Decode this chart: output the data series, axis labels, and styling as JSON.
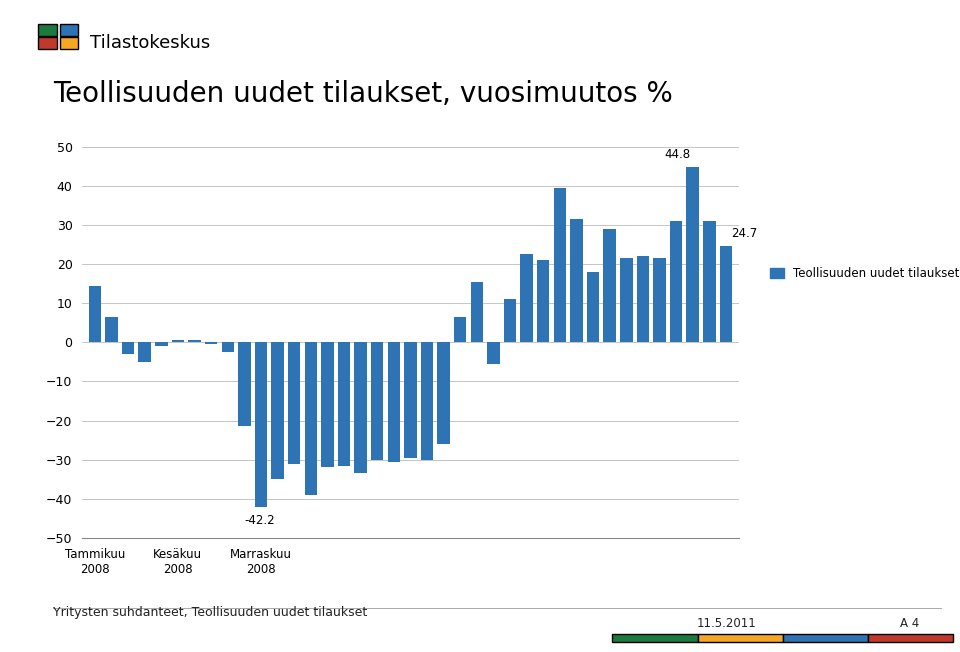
{
  "title": "Teollisuuden uudet tilaukset, vuosimuutos %",
  "bar_color": "#2E74B5",
  "legend_label": "Teollisuuden uudet tilaukset",
  "footer_text": "Yritysten suhdanteet, Teollisuuden uudet tilaukset",
  "date_text": "11.5.2011",
  "page_text": "A 4",
  "ylim": [
    -50,
    50
  ],
  "yticks": [
    -50,
    -40,
    -30,
    -20,
    -10,
    0,
    10,
    20,
    30,
    40,
    50
  ],
  "xtick_positions": [
    0,
    5,
    10
  ],
  "xtick_labels": [
    "Tammikuu\n2008",
    "Kesäkuu\n2008",
    "Marraskuu\n2008"
  ],
  "annotate_min_idx": 10,
  "annotate_min_val": -42.2,
  "annotate_max_idx": 36,
  "annotate_max_val": 44.8,
  "annotate_last_idx": 38,
  "annotate_last_val": 24.7,
  "values": [
    14.5,
    6.5,
    -3.0,
    -5.0,
    -1.0,
    0.5,
    0.5,
    -0.5,
    -2.5,
    -21.5,
    -42.2,
    -35.0,
    -31.0,
    -39.0,
    -32.0,
    -31.5,
    -33.5,
    -30.0,
    -30.5,
    -29.5,
    -30.0,
    -26.0,
    6.5,
    15.5,
    -5.5,
    11.0,
    22.5,
    21.0,
    39.5,
    31.5,
    18.0,
    29.0,
    21.5,
    22.0,
    21.5,
    31.0,
    44.8,
    31.0,
    24.7
  ],
  "logo_colors_top": [
    "#C0392B",
    "#F5A623"
  ],
  "logo_colors_bottom": [
    "#1B7A3E",
    "#2E74B5"
  ],
  "bottom_bar_colors": [
    "#1B7A3E",
    "#F5A623",
    "#2E74B5",
    "#C0392B"
  ]
}
